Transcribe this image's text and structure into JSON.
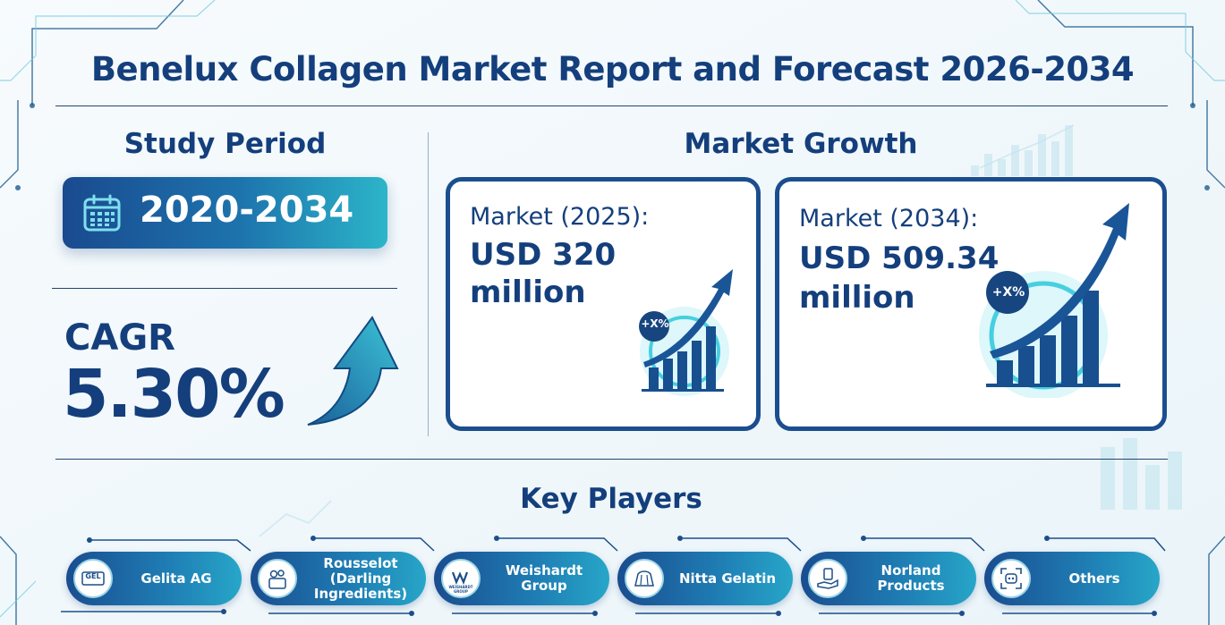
{
  "title": "Benelux Collagen Market Report and Forecast 2026-2034",
  "study_period": {
    "heading": "Study Period",
    "value": "2020-2034",
    "icon": "calendar-icon"
  },
  "cagr": {
    "label": "CAGR",
    "value": "5.30%",
    "icon": "trend-arrow-icon"
  },
  "market_growth": {
    "heading": "Market Growth",
    "cards": [
      {
        "label": "Market (2025):",
        "value_line1": "USD 320",
        "value_line2": "million",
        "badge": "+X%",
        "icon": "growth-chart-icon"
      },
      {
        "label": "Market (2034):",
        "value_line1": "USD 509.34",
        "value_line2": "million",
        "badge": "+X%",
        "icon": "growth-chart-icon"
      }
    ]
  },
  "key_players": {
    "heading": "Key Players",
    "items": [
      {
        "name": "Gelita AG",
        "icon": "gel-logo-icon",
        "logo_text": "GEL"
      },
      {
        "name": "Rousselot (Darling Ingredients)",
        "icon": "ingredients-icon"
      },
      {
        "name": "Weishardt Group",
        "icon": "weishardt-logo-icon",
        "logo_text": "WEISHARDT GROUP"
      },
      {
        "name": "Nitta Gelatin",
        "icon": "gelatin-icon"
      },
      {
        "name": "Norland Products",
        "icon": "product-hand-icon"
      },
      {
        "name": "Others",
        "icon": "more-icon"
      }
    ]
  },
  "colors": {
    "navy": "#143f7c",
    "teal": "#2cb5c9",
    "blue": "#1d74ad"
  }
}
